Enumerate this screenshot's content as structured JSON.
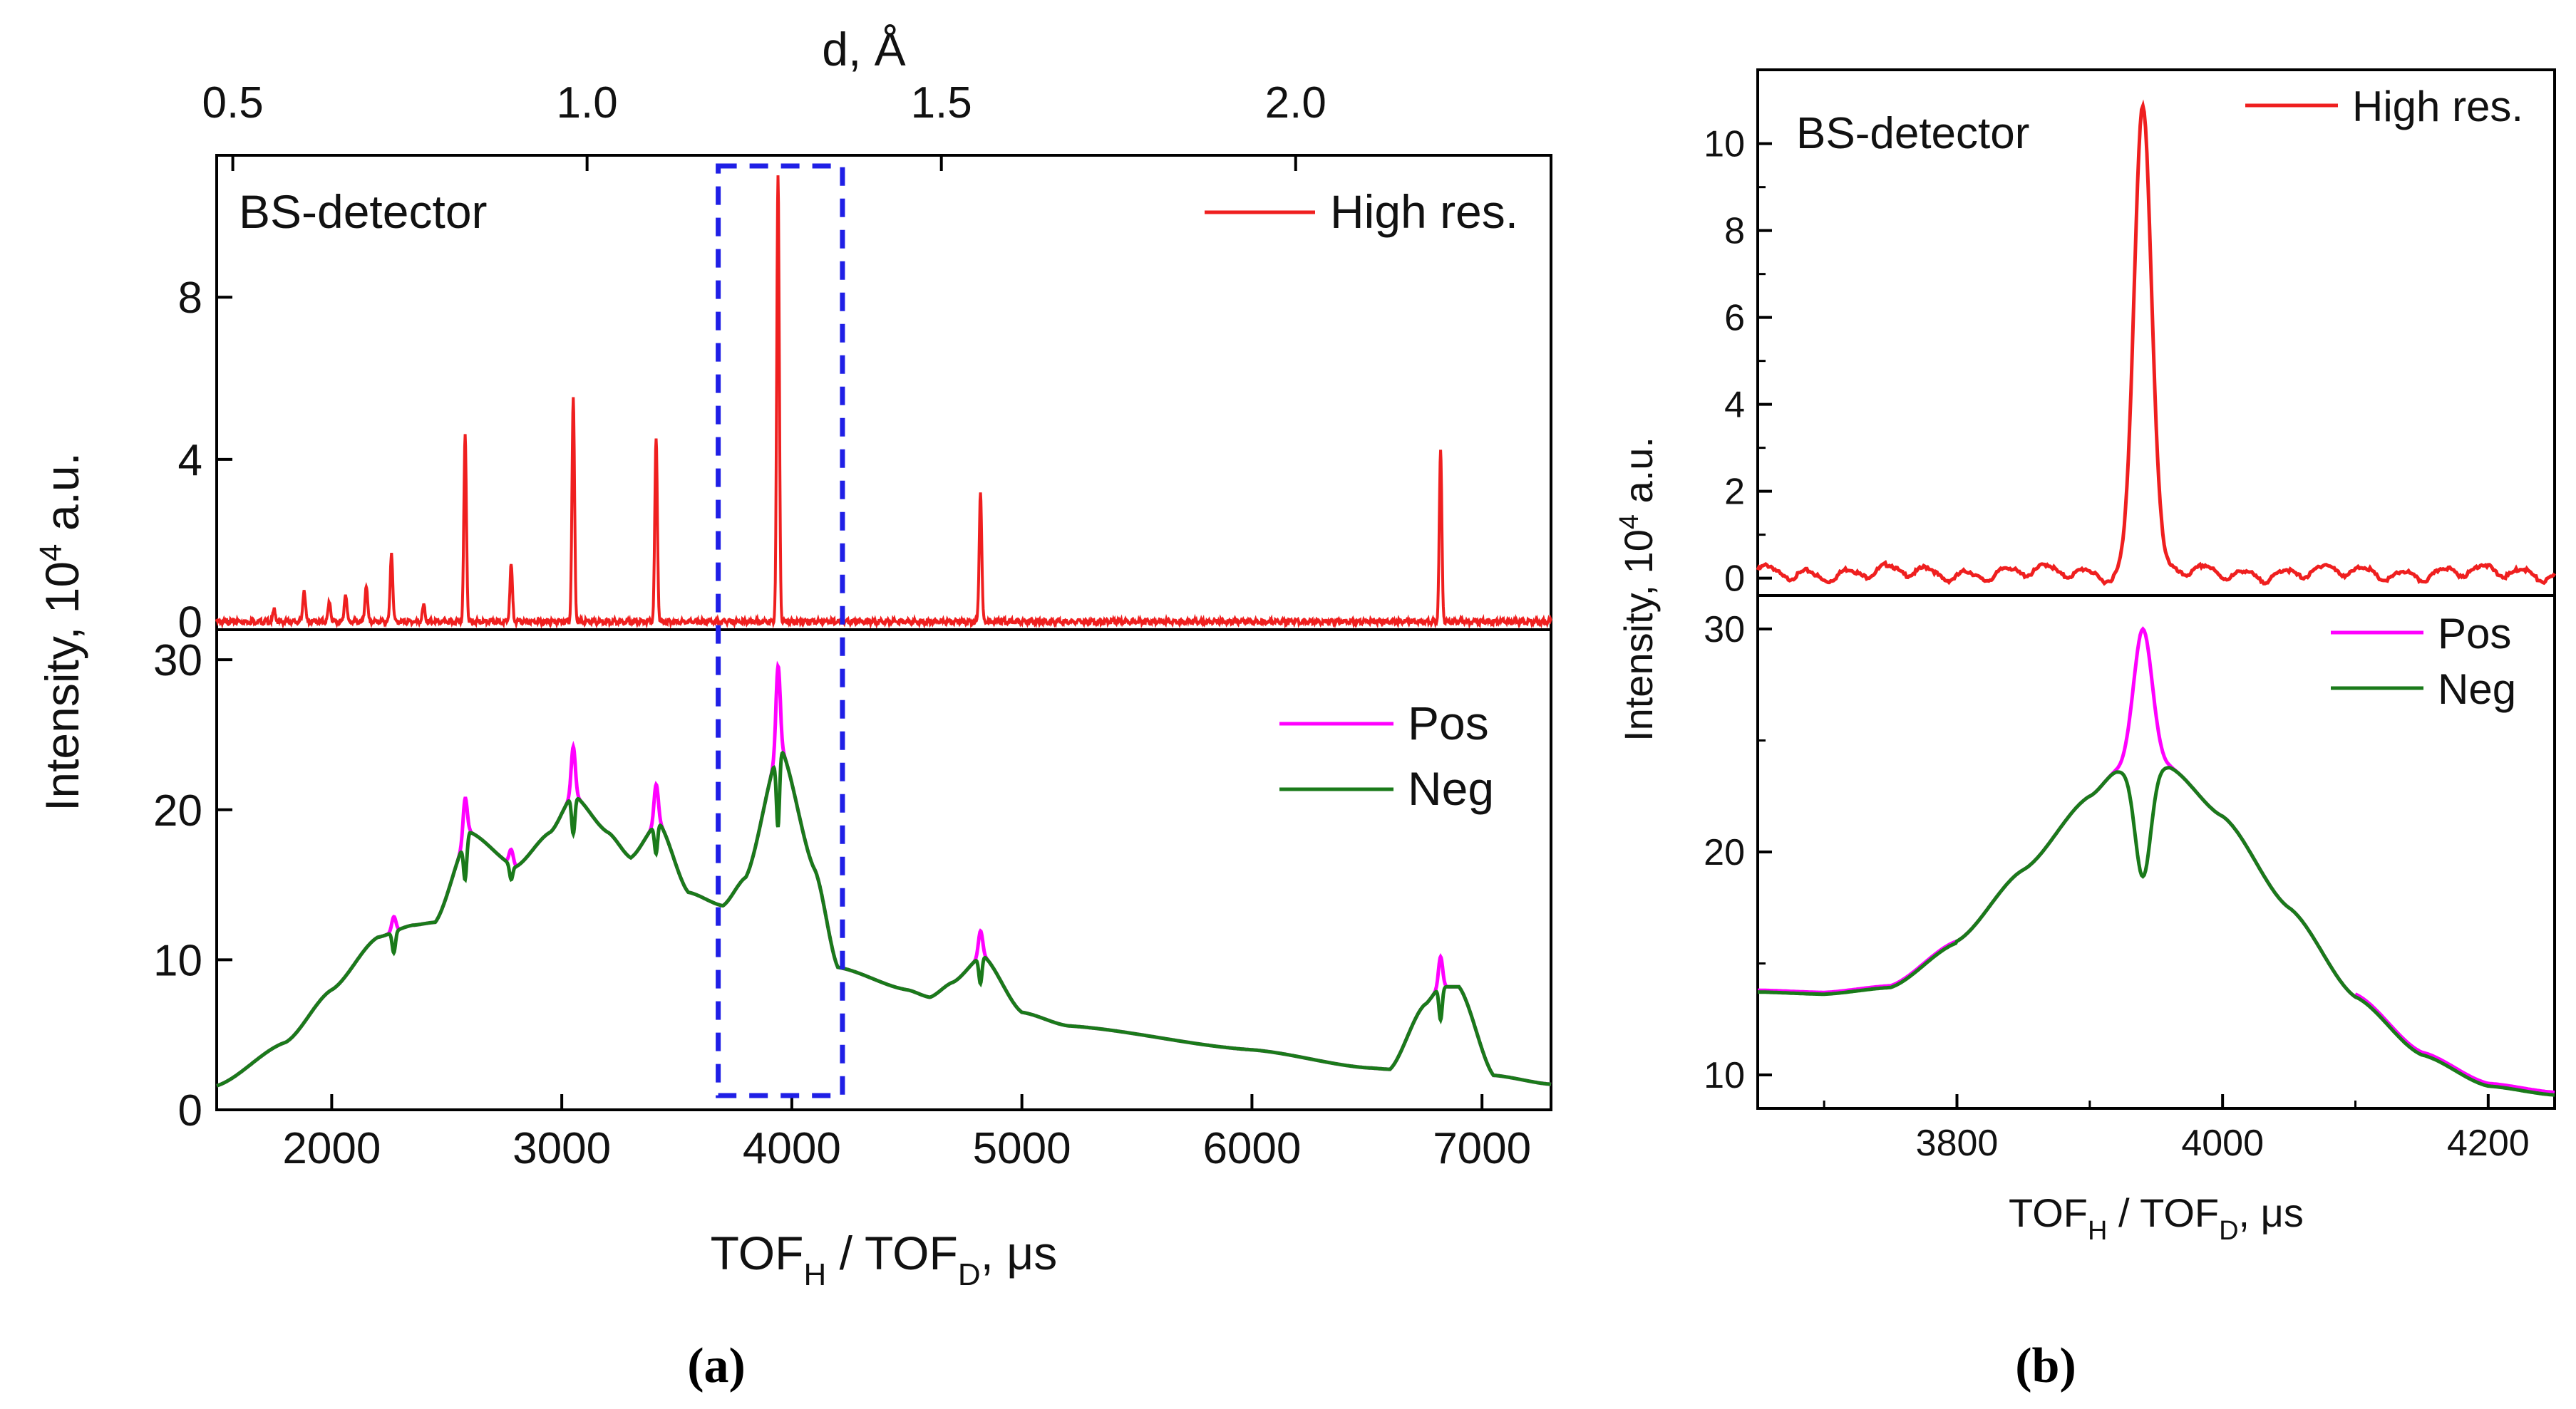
{
  "chart_data": [
    {
      "id": "a",
      "type": "line",
      "caption": "(a)",
      "xlabel_main": "TOF",
      "xlabel_sub1": "H",
      "xlabel_sep": " / TOF",
      "xlabel_sub2": "D",
      "xlabel_unit": ", μs",
      "ylabel_main": "Intensity, 10",
      "ylabel_sup": "4",
      "ylabel_unit": " a.u.",
      "top_axis_label": "d, Å",
      "top_ticks": [
        {
          "label": "0.5",
          "tof": 1570
        },
        {
          "label": "1.0",
          "tof": 3110
        },
        {
          "label": "1.5",
          "tof": 4650
        },
        {
          "label": "2.0",
          "tof": 6190
        }
      ],
      "xlim": [
        1500,
        7300
      ],
      "xticks": [
        2000,
        3000,
        4000,
        5000,
        6000,
        7000
      ],
      "highlight_box": {
        "x_from": 3680,
        "x_to": 4220,
        "color": "#1f1fe6"
      },
      "top_panel": {
        "annotation": "BS-detector",
        "ylim": [
          -0.2,
          11.5
        ],
        "yticks": [
          0,
          4,
          8
        ],
        "legend": "top-right",
        "series": [
          {
            "name": "High res.",
            "color": "#ef1f1f",
            "peaks": [
              [
                1750,
                0.3
              ],
              [
                1880,
                0.8
              ],
              [
                1990,
                0.5
              ],
              [
                2060,
                0.7
              ],
              [
                2150,
                0.9
              ],
              [
                2260,
                1.7
              ],
              [
                2400,
                0.4
              ],
              [
                2580,
                4.6
              ],
              [
                2780,
                1.4
              ],
              [
                3050,
                5.5
              ],
              [
                3410,
                4.5
              ],
              [
                3940,
                11
              ],
              [
                4820,
                3.2
              ],
              [
                6820,
                4.2
              ]
            ]
          }
        ]
      },
      "bottom_panel": {
        "ylim": [
          0,
          32
        ],
        "yticks": [
          0,
          10,
          20,
          30
        ],
        "legend": "right",
        "series": [
          {
            "name": "Pos",
            "color": "#ff00ff"
          },
          {
            "name": "Neg",
            "color": "#1a7a1a"
          }
        ],
        "baseline_points": [
          [
            1500,
            1.6
          ],
          [
            1800,
            4.5
          ],
          [
            2000,
            8
          ],
          [
            2200,
            11.5
          ],
          [
            2350,
            12.3
          ],
          [
            2450,
            12.5
          ],
          [
            2600,
            18.5
          ],
          [
            2800,
            16.2
          ],
          [
            2950,
            18.5
          ],
          [
            3050,
            21.0
          ],
          [
            3200,
            18.5
          ],
          [
            3300,
            16.8
          ],
          [
            3420,
            19.2
          ],
          [
            3550,
            14.5
          ],
          [
            3700,
            13.6
          ],
          [
            3800,
            15.5
          ],
          [
            3950,
            24.2
          ],
          [
            4100,
            16.0
          ],
          [
            4200,
            9.5
          ],
          [
            4500,
            8.0
          ],
          [
            4600,
            7.5
          ],
          [
            4700,
            8.5
          ],
          [
            4830,
            10.3
          ],
          [
            5000,
            6.5
          ],
          [
            5200,
            5.6
          ],
          [
            6000,
            4.0
          ],
          [
            6500,
            2.8
          ],
          [
            6600,
            2.7
          ],
          [
            6750,
            7.0
          ],
          [
            6820,
            8.2
          ],
          [
            6900,
            8.2
          ],
          [
            7050,
            2.3
          ],
          [
            7300,
            1.7
          ]
        ],
        "dips": [
          [
            2270,
            1.4
          ],
          [
            2580,
            2.6
          ],
          [
            2780,
            1.0
          ],
          [
            3050,
            2.6
          ],
          [
            3410,
            2.0
          ],
          [
            3940,
            5.0
          ],
          [
            4820,
            1.8
          ],
          [
            6820,
            2.2
          ]
        ],
        "pos_peaks": [
          [
            2270,
            1.0
          ],
          [
            2580,
            2.8
          ],
          [
            2780,
            1.0
          ],
          [
            3050,
            3.2
          ],
          [
            3410,
            2.6
          ],
          [
            3940,
            5.7
          ],
          [
            4820,
            1.7
          ],
          [
            6820,
            2.0
          ]
        ]
      }
    },
    {
      "id": "b",
      "type": "line",
      "caption": "(b)",
      "xlabel_main": "TOF",
      "xlabel_sub1": "H",
      "xlabel_sep": " / TOF",
      "xlabel_sub2": "D",
      "xlabel_unit": ", μs",
      "ylabel_main": "Intensity, 10",
      "ylabel_sup": "4",
      "ylabel_unit": " a.u.",
      "xlim": [
        3650,
        4250
      ],
      "xticks": [
        3800,
        4000,
        4200
      ],
      "top_panel": {
        "annotation": "BS-detector",
        "ylim": [
          -0.4,
          11.7
        ],
        "yticks": [
          0,
          2,
          4,
          6,
          8,
          10
        ],
        "legend": "top-right",
        "series": [
          {
            "name": "High res.",
            "color": "#ef1f1f",
            "peak_center": 3940,
            "peak_height": 10.9,
            "peak_sigma": 6.5
          }
        ]
      },
      "bottom_panel": {
        "ylim": [
          8.5,
          31.5
        ],
        "yticks": [
          10,
          20,
          30
        ],
        "legend": "top-right",
        "series": [
          {
            "name": "Pos",
            "color": "#ff00ff"
          },
          {
            "name": "Neg",
            "color": "#1a7a1a"
          }
        ],
        "curve_center": 3940,
        "curve_points": [
          [
            3650,
            13.8
          ],
          [
            3700,
            13.7
          ],
          [
            3750,
            14.0
          ],
          [
            3800,
            16.0
          ],
          [
            3850,
            19.2
          ],
          [
            3900,
            22.5
          ],
          [
            3920,
            23.6
          ],
          [
            3940,
            24.2
          ],
          [
            3960,
            23.8
          ],
          [
            4000,
            21.6
          ],
          [
            4050,
            17.5
          ],
          [
            4100,
            13.5
          ],
          [
            4150,
            10.9
          ],
          [
            4200,
            9.5
          ],
          [
            4250,
            9.1
          ]
        ],
        "dip_depth": 5.3,
        "dip_sigma": 6,
        "pos_bump": 5.8,
        "pos_sigma": 7
      }
    }
  ]
}
